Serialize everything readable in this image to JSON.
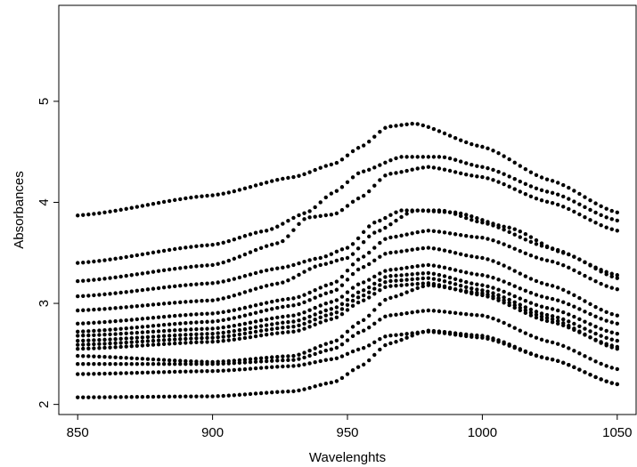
{
  "chart_data": {
    "type": "scatter",
    "title": "",
    "xlabel": "Wavelenghts",
    "ylabel": "Absorbances",
    "xlim": [
      843,
      1057
    ],
    "ylim": [
      1.9,
      5.95
    ],
    "xticks": [
      850,
      900,
      950,
      1000,
      1050
    ],
    "yticks": [
      2,
      3,
      4,
      5
    ],
    "point_color": "#000000",
    "grid": false,
    "legend": "none",
    "wavelengths_sampled_every": 2,
    "series": [
      {
        "curve": [
          [
            850,
            3.87
          ],
          [
            900,
            4.07
          ],
          [
            930,
            4.25
          ],
          [
            945,
            4.38
          ],
          [
            955,
            4.55
          ],
          [
            965,
            4.75
          ],
          [
            975,
            4.78
          ],
          [
            1000,
            4.55
          ],
          [
            1025,
            4.22
          ],
          [
            1050,
            3.9
          ]
        ]
      },
      {
        "curve": [
          [
            850,
            3.4
          ],
          [
            900,
            3.58
          ],
          [
            920,
            3.72
          ],
          [
            935,
            3.9
          ],
          [
            945,
            4.1
          ],
          [
            955,
            4.3
          ],
          [
            970,
            4.45
          ],
          [
            985,
            4.45
          ],
          [
            1000,
            4.35
          ],
          [
            1025,
            4.1
          ],
          [
            1050,
            3.82
          ]
        ]
      },
      {
        "curve": [
          [
            850,
            3.22
          ],
          [
            900,
            3.38
          ],
          [
            925,
            3.6
          ],
          [
            935,
            3.85
          ],
          [
            945,
            3.88
          ],
          [
            955,
            4.05
          ],
          [
            965,
            4.28
          ],
          [
            980,
            4.35
          ],
          [
            1000,
            4.25
          ],
          [
            1025,
            4.0
          ],
          [
            1050,
            3.72
          ]
        ]
      },
      {
        "curve": [
          [
            850,
            3.07
          ],
          [
            900,
            3.2
          ],
          [
            925,
            3.35
          ],
          [
            940,
            3.45
          ],
          [
            950,
            3.55
          ],
          [
            960,
            3.8
          ],
          [
            970,
            3.92
          ],
          [
            985,
            3.92
          ],
          [
            1000,
            3.8
          ],
          [
            1025,
            3.55
          ],
          [
            1050,
            3.28
          ]
        ]
      },
      {
        "curve": [
          [
            850,
            2.93
          ],
          [
            900,
            3.03
          ],
          [
            925,
            3.2
          ],
          [
            940,
            3.38
          ],
          [
            950,
            3.45
          ],
          [
            960,
            3.7
          ],
          [
            975,
            3.92
          ],
          [
            990,
            3.9
          ],
          [
            1010,
            3.75
          ],
          [
            1030,
            3.5
          ],
          [
            1050,
            3.25
          ]
        ]
      },
      {
        "curve": [
          [
            850,
            2.8
          ],
          [
            900,
            2.9
          ],
          [
            930,
            3.05
          ],
          [
            945,
            3.2
          ],
          [
            955,
            3.45
          ],
          [
            965,
            3.65
          ],
          [
            980,
            3.72
          ],
          [
            1000,
            3.65
          ],
          [
            1025,
            3.42
          ],
          [
            1050,
            3.14
          ]
        ]
      },
      {
        "curve": [
          [
            850,
            2.72
          ],
          [
            900,
            2.82
          ],
          [
            930,
            2.98
          ],
          [
            945,
            3.12
          ],
          [
            955,
            3.35
          ],
          [
            965,
            3.5
          ],
          [
            980,
            3.55
          ],
          [
            1000,
            3.45
          ],
          [
            1025,
            3.18
          ],
          [
            1050,
            2.88
          ]
        ]
      },
      {
        "curve": [
          [
            850,
            2.68
          ],
          [
            900,
            2.75
          ],
          [
            930,
            2.88
          ],
          [
            945,
            3.02
          ],
          [
            955,
            3.2
          ],
          [
            965,
            3.33
          ],
          [
            980,
            3.38
          ],
          [
            1000,
            3.28
          ],
          [
            1025,
            3.05
          ],
          [
            1050,
            2.8
          ]
        ]
      },
      {
        "curve": [
          [
            850,
            2.63
          ],
          [
            900,
            2.7
          ],
          [
            930,
            2.82
          ],
          [
            945,
            2.95
          ],
          [
            955,
            3.12
          ],
          [
            965,
            3.27
          ],
          [
            980,
            3.3
          ],
          [
            1000,
            3.18
          ],
          [
            1025,
            2.95
          ],
          [
            1050,
            2.7
          ]
        ]
      },
      {
        "curve": [
          [
            850,
            2.59
          ],
          [
            900,
            2.66
          ],
          [
            930,
            2.77
          ],
          [
            945,
            2.9
          ],
          [
            955,
            3.07
          ],
          [
            965,
            3.22
          ],
          [
            980,
            3.25
          ],
          [
            1000,
            3.13
          ],
          [
            1025,
            2.88
          ],
          [
            1050,
            2.63
          ]
        ]
      },
      {
        "curve": [
          [
            850,
            2.55
          ],
          [
            900,
            2.62
          ],
          [
            930,
            2.72
          ],
          [
            945,
            2.85
          ],
          [
            955,
            3.02
          ],
          [
            965,
            3.17
          ],
          [
            980,
            3.2
          ],
          [
            1000,
            3.08
          ],
          [
            1025,
            2.82
          ],
          [
            1050,
            2.57
          ]
        ]
      },
      {
        "curve": [
          [
            850,
            2.48
          ],
          [
            900,
            2.42
          ],
          [
            930,
            2.48
          ],
          [
            945,
            2.62
          ],
          [
            955,
            2.82
          ],
          [
            965,
            3.05
          ],
          [
            980,
            3.18
          ],
          [
            1000,
            3.1
          ],
          [
            1025,
            2.85
          ],
          [
            1050,
            2.55
          ]
        ]
      },
      {
        "curve": [
          [
            850,
            2.4
          ],
          [
            900,
            2.4
          ],
          [
            930,
            2.44
          ],
          [
            945,
            2.55
          ],
          [
            955,
            2.72
          ],
          [
            965,
            2.88
          ],
          [
            980,
            2.93
          ],
          [
            1000,
            2.88
          ],
          [
            1025,
            2.62
          ],
          [
            1050,
            2.35
          ]
        ]
      },
      {
        "curve": [
          [
            850,
            2.3
          ],
          [
            900,
            2.33
          ],
          [
            930,
            2.38
          ],
          [
            945,
            2.45
          ],
          [
            955,
            2.55
          ],
          [
            965,
            2.68
          ],
          [
            980,
            2.72
          ],
          [
            1000,
            2.66
          ],
          [
            1025,
            2.45
          ],
          [
            1050,
            2.2
          ]
        ]
      },
      {
        "curve": [
          [
            850,
            2.07
          ],
          [
            900,
            2.08
          ],
          [
            930,
            2.13
          ],
          [
            945,
            2.22
          ],
          [
            955,
            2.38
          ],
          [
            965,
            2.6
          ],
          [
            980,
            2.73
          ],
          [
            1000,
            2.68
          ],
          [
            1025,
            2.45
          ],
          [
            1050,
            2.2
          ]
        ]
      }
    ]
  }
}
